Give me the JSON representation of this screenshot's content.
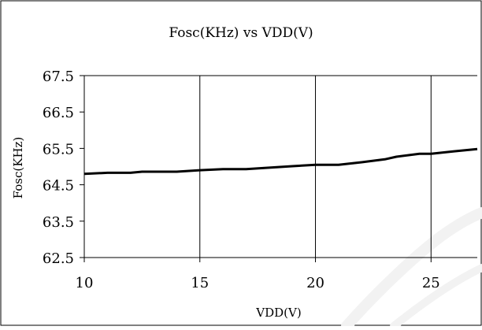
{
  "chart_data": {
    "type": "line",
    "title": "Fosc(KHz) vs VDD(V)",
    "xlabel": "VDD(V)",
    "ylabel": "Fosc(KHz)",
    "xlim": [
      10,
      27
    ],
    "ylim": [
      62.5,
      67.5
    ],
    "x_ticks": [
      "10",
      "15",
      "20",
      "25"
    ],
    "y_ticks": [
      "67.5",
      "66.5",
      "65.5",
      "64.5",
      "63.5",
      "62.5"
    ],
    "grid": "vertical",
    "legend": "none",
    "colors": {
      "line": "#000000",
      "grid": "#000000",
      "watermark": "#f2f2f2"
    },
    "series": [
      {
        "x": [
          10,
          11,
          12,
          12.5,
          14,
          15,
          16,
          17,
          18,
          19,
          20,
          21,
          22,
          23,
          23.5,
          24.5,
          25,
          26,
          27
        ],
        "y": [
          64.8,
          64.83,
          64.83,
          64.86,
          64.86,
          64.9,
          64.93,
          64.93,
          64.97,
          65.01,
          65.05,
          65.05,
          65.12,
          65.2,
          65.27,
          65.35,
          65.35,
          65.42,
          65.48
        ]
      }
    ]
  }
}
